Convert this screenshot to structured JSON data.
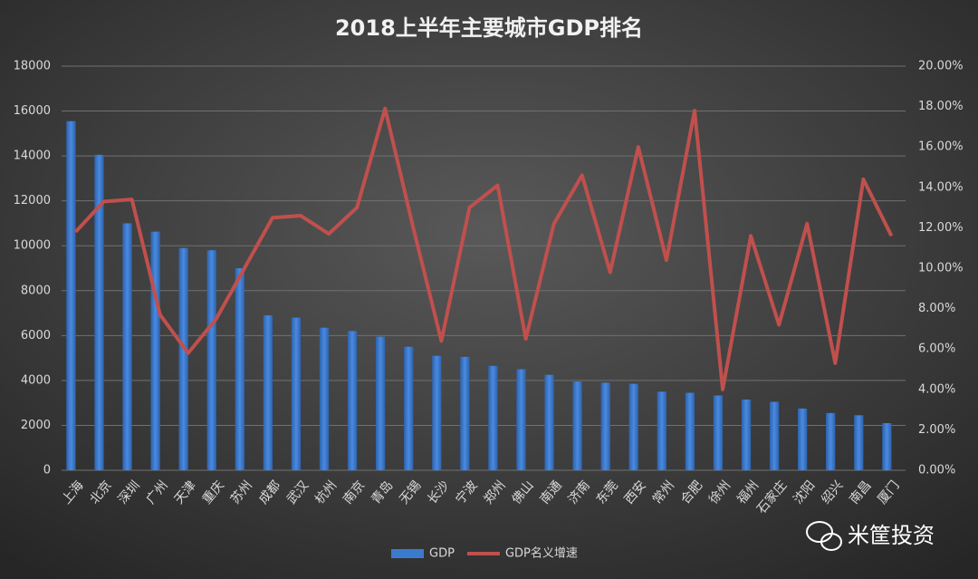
{
  "chart_data": {
    "type": "bar",
    "title": "2018上半年主要城市GDP排名",
    "categories": [
      "上海",
      "北京",
      "深圳",
      "广州",
      "天津",
      "重庆",
      "苏州",
      "成都",
      "武汉",
      "杭州",
      "南京",
      "青岛",
      "无锡",
      "长沙",
      "宁波",
      "郑州",
      "佛山",
      "南通",
      "济南",
      "东莞",
      "西安",
      "常州",
      "合肥",
      "徐州",
      "福州",
      "石家庄",
      "沈阳",
      "绍兴",
      "南昌",
      "厦门"
    ],
    "series": [
      {
        "name": "GDP",
        "type": "bar",
        "color": "#3a7bd0",
        "values": [
          15550,
          14050,
          11000,
          10630,
          9900,
          9800,
          9000,
          6900,
          6800,
          6350,
          6200,
          5950,
          5500,
          5100,
          5050,
          4650,
          4500,
          4250,
          3950,
          3900,
          3850,
          3500,
          3450,
          3330,
          3150,
          3050,
          2750,
          2550,
          2450,
          2100
        ]
      },
      {
        "name": "GDP名义增速",
        "type": "line",
        "axis": "y2",
        "color": "#c0504d",
        "values": [
          11.8,
          13.3,
          13.4,
          7.7,
          5.8,
          7.5,
          10.0,
          12.5,
          12.6,
          11.7,
          13.0,
          17.9,
          12.0,
          6.4,
          13.0,
          14.1,
          6.5,
          12.2,
          14.6,
          9.8,
          16.0,
          10.4,
          17.8,
          4.0,
          11.6,
          7.2,
          12.2,
          5.3,
          14.4,
          11.6
        ]
      }
    ],
    "ylim": [
      0,
      18000
    ],
    "yticks": [
      0,
      2000,
      4000,
      6000,
      8000,
      10000,
      12000,
      14000,
      16000,
      18000
    ],
    "y2lim": [
      0,
      20
    ],
    "y2ticks": [
      {
        "value": 0,
        "label": "0.00%"
      },
      {
        "value": 2,
        "label": "2.00%"
      },
      {
        "value": 4,
        "label": "4.00%"
      },
      {
        "value": 6,
        "label": "6.00%"
      },
      {
        "value": 8,
        "label": "8.00%"
      },
      {
        "value": 10,
        "label": "10.00%"
      },
      {
        "value": 12,
        "label": "12.00%"
      },
      {
        "value": 14,
        "label": "14.00%"
      },
      {
        "value": 16,
        "label": "16.00%"
      },
      {
        "value": 18,
        "label": "18.00%"
      },
      {
        "value": 20,
        "label": "20.00%"
      }
    ],
    "grid": true,
    "legend": "bottom",
    "watermark": "米筐投资"
  }
}
